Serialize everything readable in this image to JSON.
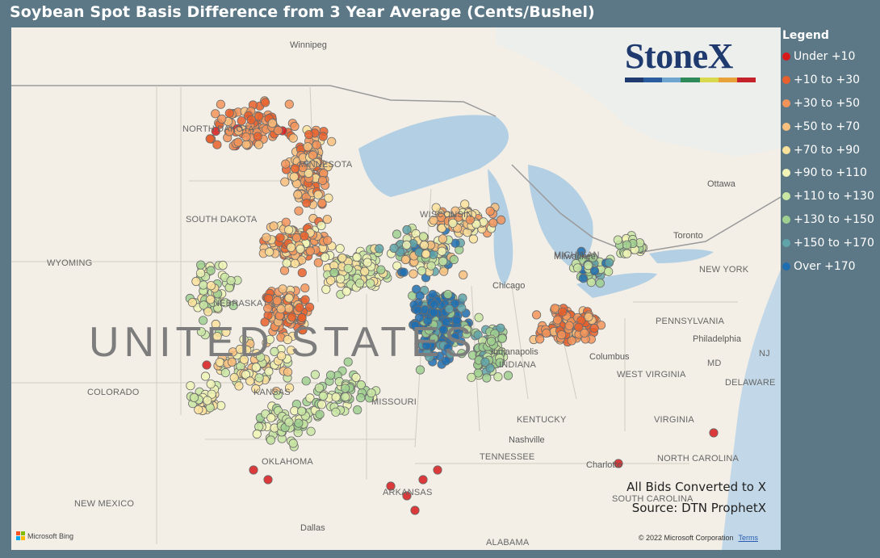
{
  "title": "Soybean Spot Basis Difference from 3 Year Average (Cents/Bushel)",
  "legend": {
    "title": "Legend",
    "items": [
      {
        "label": "Under +10",
        "color": "#d7191c"
      },
      {
        "label": "+10 to +30",
        "color": "#e8602c"
      },
      {
        "label": "+30 to +50",
        "color": "#f2945a"
      },
      {
        "label": "+50 to +70",
        "color": "#f8c07e"
      },
      {
        "label": "+70 to +90",
        "color": "#fbe29c"
      },
      {
        "label": "+90 to +110",
        "color": "#f1f4b6"
      },
      {
        "label": "+110 to +130",
        "color": "#c9e6a3"
      },
      {
        "label": "+130 to +150",
        "color": "#9fd08f"
      },
      {
        "label": "+150 to +170",
        "color": "#5fa4a9"
      },
      {
        "label": "Over +170",
        "color": "#1f6eb0"
      }
    ]
  },
  "logo": {
    "text": "StoneX",
    "bar_colors": [
      "#1f3a6e",
      "#2a5d9e",
      "#6ea6cf",
      "#2e8a59",
      "#d8d94d",
      "#e8a23a",
      "#c4222b"
    ]
  },
  "notes": {
    "line1": "All Bids Converted to X",
    "line2": "Source: DTN ProphetX"
  },
  "attribution": {
    "provider": "Microsoft Bing",
    "copyright": "© 2022 Microsoft Corporation",
    "terms": "Terms"
  },
  "map_labels": {
    "country": "UNITED STATES",
    "cities": [
      "Winnipeg",
      "Ottawa",
      "Toronto",
      "Chicago",
      "Indianapolis",
      "Columbus",
      "Nashville",
      "Charlotte",
      "Philadelphia",
      "Dallas",
      "Milwaukee"
    ],
    "states": [
      "NORTH DAKOTA",
      "MINNESOTA",
      "SOUTH DAKOTA",
      "WYOMING",
      "NEBRASKA",
      "COLORADO",
      "KANSAS",
      "MISSOURI",
      "OKLAHOMA",
      "ARKANSAS",
      "NEW MEXICO",
      "TENNESSEE",
      "KENTUCKY",
      "INDIANA",
      "WEST VIRGINIA",
      "VIRGINIA",
      "NORTH CAROLINA",
      "SOUTH CAROLINA",
      "ALABAMA",
      "PENNSYLVANIA",
      "NEW YORK",
      "MD",
      "DELAWARE",
      "NJ",
      "WISCONSIN",
      "MICHIGAN"
    ]
  }
}
